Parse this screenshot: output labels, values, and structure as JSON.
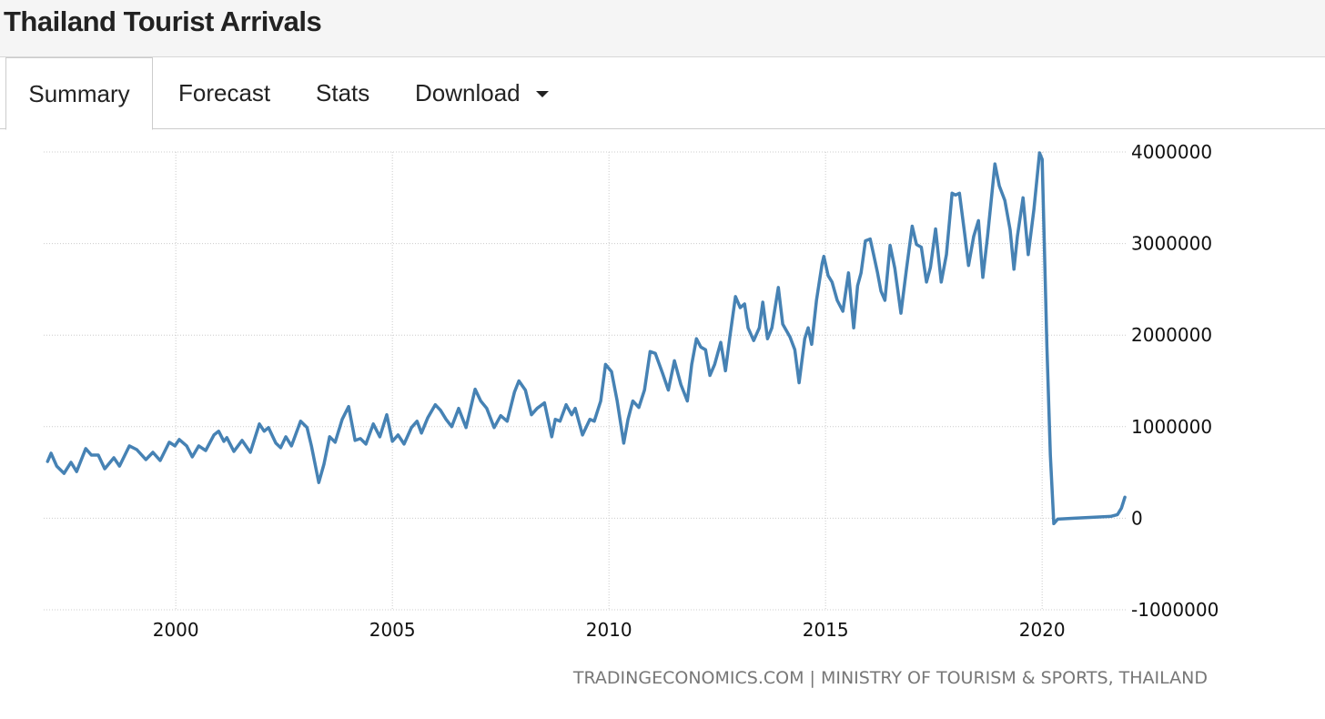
{
  "header": {
    "title": "Thailand Tourist Arrivals"
  },
  "tabs": [
    "Summary",
    "Forecast",
    "Stats",
    "Download"
  ],
  "chart_data": {
    "type": "line",
    "color": "#4682b4",
    "grid": true,
    "source": "TRADINGECONOMICS.COM | MINISTRY OF TOURISM & SPORTS, THAILAND",
    "xlim": [
      1996.95,
      2021.95
    ],
    "xticks": [
      2000,
      2005,
      2010,
      2015,
      2020
    ],
    "ylim": [
      -1000000,
      4000000
    ],
    "yticks": [
      -1000000,
      0,
      1000000,
      2000000,
      3000000,
      4000000
    ],
    "x": [
      1997.04,
      1997.12,
      1997.25,
      1997.42,
      1997.58,
      1997.71,
      1997.92,
      1998.05,
      1998.21,
      1998.36,
      1998.57,
      1998.7,
      1998.93,
      1999.1,
      1999.31,
      1999.47,
      1999.64,
      1999.85,
      1999.98,
      2000.08,
      2000.25,
      2000.38,
      2000.53,
      2000.69,
      2000.88,
      2000.99,
      2001.11,
      2001.18,
      2001.34,
      2001.53,
      2001.72,
      2001.93,
      2002.04,
      2002.14,
      2002.31,
      2002.42,
      2002.54,
      2002.67,
      2002.88,
      2003.03,
      2003.13,
      2003.3,
      2003.42,
      2003.55,
      2003.68,
      2003.84,
      2003.99,
      2004.14,
      2004.26,
      2004.39,
      2004.56,
      2004.71,
      2004.87,
      2005.0,
      2005.13,
      2005.27,
      2005.44,
      2005.57,
      2005.67,
      2005.82,
      2005.99,
      2006.11,
      2006.24,
      2006.37,
      2006.53,
      2006.7,
      2006.91,
      2007.04,
      2007.18,
      2007.35,
      2007.5,
      2007.65,
      2007.82,
      2007.92,
      2008.07,
      2008.21,
      2008.34,
      2008.51,
      2008.68,
      2008.76,
      2008.87,
      2009.01,
      2009.14,
      2009.22,
      2009.39,
      2009.56,
      2009.66,
      2009.81,
      2009.92,
      2010.06,
      2010.19,
      2010.34,
      2010.44,
      2010.55,
      2010.69,
      2010.82,
      2010.95,
      2011.07,
      2011.24,
      2011.37,
      2011.51,
      2011.66,
      2011.81,
      2011.91,
      2012.02,
      2012.12,
      2012.23,
      2012.33,
      2012.44,
      2012.58,
      2012.69,
      2012.79,
      2012.92,
      2013.03,
      2013.13,
      2013.21,
      2013.34,
      2013.47,
      2013.55,
      2013.66,
      2013.76,
      2013.91,
      2014.01,
      2014.18,
      2014.29,
      2014.39,
      2014.52,
      2014.6,
      2014.68,
      2014.79,
      2014.92,
      2014.96,
      2015.06,
      2015.15,
      2015.27,
      2015.4,
      2015.53,
      2015.65,
      2015.74,
      2015.82,
      2015.92,
      2016.03,
      2016.11,
      2016.2,
      2016.28,
      2016.37,
      2016.49,
      2016.6,
      2016.74,
      2016.87,
      2017.0,
      2017.1,
      2017.21,
      2017.33,
      2017.42,
      2017.54,
      2017.67,
      2017.79,
      2017.92,
      2018.0,
      2018.09,
      2018.21,
      2018.3,
      2018.42,
      2018.53,
      2018.63,
      2018.74,
      2018.91,
      2019.01,
      2019.14,
      2019.26,
      2019.35,
      2019.43,
      2019.56,
      2019.68,
      2019.81,
      2019.94,
      2020.0,
      2020.11,
      2020.19,
      2020.27,
      2020.36,
      2020.74,
      2021.16,
      2021.58,
      2021.74,
      2021.83,
      2021.91
    ],
    "values": [
      620000,
      710000,
      570000,
      490000,
      610000,
      510000,
      760000,
      690000,
      690000,
      540000,
      660000,
      570000,
      790000,
      750000,
      640000,
      720000,
      630000,
      830000,
      790000,
      860000,
      790000,
      670000,
      790000,
      740000,
      910000,
      950000,
      840000,
      880000,
      730000,
      850000,
      720000,
      1030000,
      950000,
      990000,
      820000,
      770000,
      890000,
      790000,
      1060000,
      990000,
      790000,
      390000,
      590000,
      890000,
      830000,
      1080000,
      1220000,
      850000,
      870000,
      810000,
      1030000,
      890000,
      1130000,
      840000,
      910000,
      810000,
      990000,
      1060000,
      930000,
      1100000,
      1240000,
      1180000,
      1080000,
      1000000,
      1200000,
      990000,
      1410000,
      1280000,
      1200000,
      990000,
      1120000,
      1060000,
      1380000,
      1500000,
      1400000,
      1130000,
      1200000,
      1260000,
      890000,
      1080000,
      1060000,
      1240000,
      1130000,
      1200000,
      910000,
      1080000,
      1060000,
      1280000,
      1680000,
      1600000,
      1280000,
      820000,
      1080000,
      1280000,
      1210000,
      1400000,
      1820000,
      1800000,
      1580000,
      1400000,
      1720000,
      1460000,
      1280000,
      1680000,
      1960000,
      1870000,
      1840000,
      1560000,
      1680000,
      1920000,
      1610000,
      1980000,
      2420000,
      2300000,
      2340000,
      2080000,
      1940000,
      2080000,
      2360000,
      1960000,
      2080000,
      2520000,
      2120000,
      1980000,
      1840000,
      1480000,
      1960000,
      2080000,
      1900000,
      2380000,
      2780000,
      2860000,
      2650000,
      2580000,
      2380000,
      2260000,
      2680000,
      2080000,
      2540000,
      2680000,
      3030000,
      3050000,
      2880000,
      2680000,
      2480000,
      2380000,
      2980000,
      2730000,
      2240000,
      2730000,
      3190000,
      2990000,
      2960000,
      2580000,
      2740000,
      3160000,
      2580000,
      2880000,
      3550000,
      3530000,
      3550000,
      3110000,
      2760000,
      3080000,
      3250000,
      2630000,
      3080000,
      3870000,
      3630000,
      3470000,
      3150000,
      2720000,
      3080000,
      3500000,
      2880000,
      3370000,
      3990000,
      3920000,
      1880000,
      690000,
      -60000,
      -10000,
      0,
      10000,
      20000,
      40000,
      110000,
      230000
    ]
  }
}
